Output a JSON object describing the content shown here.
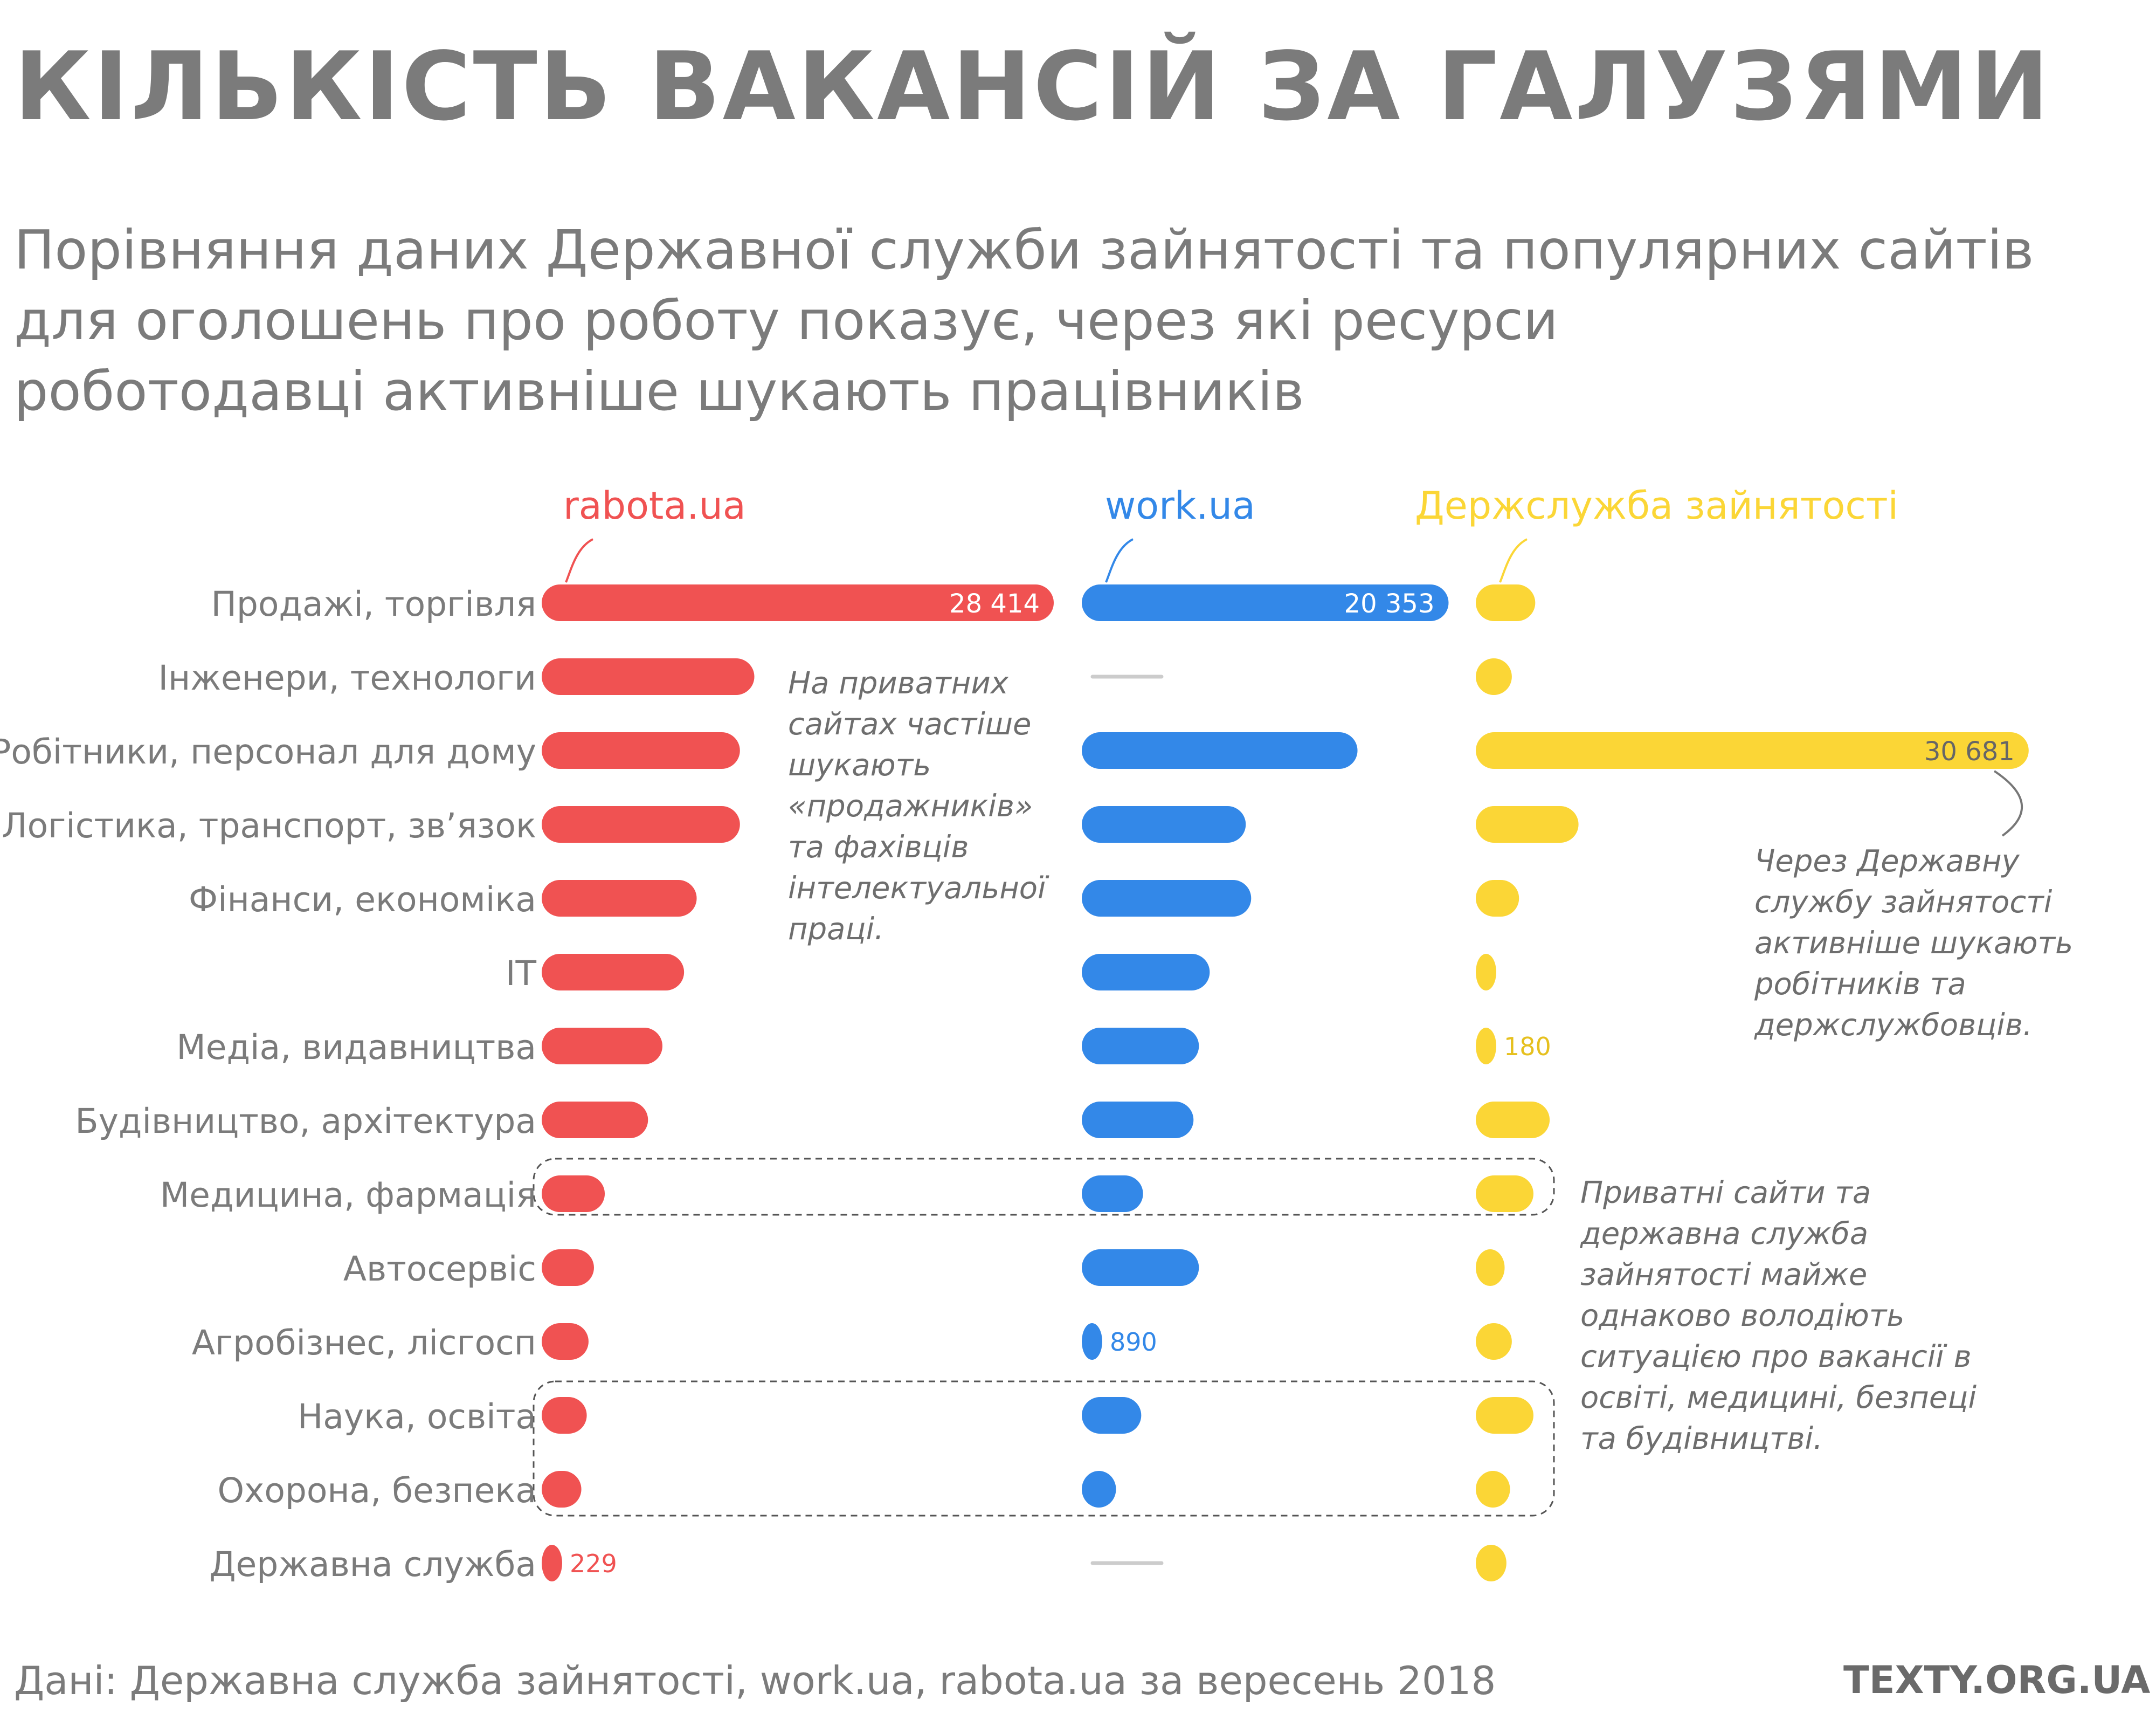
{
  "title": "КІЛЬКІСТЬ ВАКАНСІЙ ЗА ГАЛУЗЯМИ",
  "subtitle_lines": [
    "Порівняння даних Державної служби зайнятості та популярних сайтів",
    "для оголошень про роботу показує, через які ресурси",
    "роботодавці активніше шукають працівників"
  ],
  "colors": {
    "rabota": "#f05252",
    "work": "#3388e8",
    "dsz": "#fbd636",
    "text_gray": "#7b7b7b",
    "none_dash": "#cccccc"
  },
  "chart_data": {
    "type": "bar",
    "orientation": "horizontal",
    "layout": "three side-by-side panels sharing category rows",
    "categories": [
      "Продажі, торгівля",
      "Інженери, технологи",
      "Робітники, персонал для дому",
      "Логістика, транспорт, зв’язок",
      "Фінанси, економіка",
      "IT",
      "Медіа, видавництва",
      "Будівництво, архітектура",
      "Медицина, фармація",
      "Автосервіс",
      "Агробізнес, лісгосп",
      "Наука, освіта",
      "Охорона, безпека",
      "Державна служба"
    ],
    "series": [
      {
        "name": "rabota.ua",
        "color": "#f05252",
        "values": [
          28414,
          11800,
          11000,
          11000,
          8600,
          7900,
          6700,
          5900,
          3500,
          2900,
          2600,
          2500,
          2200,
          229
        ],
        "value_labels": [
          "28 414",
          "",
          "",
          "",
          "",
          "",
          "",
          "",
          "",
          "",
          "",
          "",
          "",
          "229"
        ]
      },
      {
        "name": "work.ua",
        "color": "#3388e8",
        "values": [
          20353,
          null,
          15300,
          9100,
          9400,
          7100,
          6500,
          6200,
          3400,
          6500,
          890,
          3300,
          1900,
          null
        ],
        "value_labels": [
          "20 353",
          "",
          "",
          "",
          "",
          "",
          "",
          "",
          "",
          "",
          "890",
          "",
          "",
          ""
        ]
      },
      {
        "name": "Держслужба зайнятості",
        "color": "#fbd636",
        "values": [
          3300,
          2000,
          30681,
          5700,
          2400,
          650,
          180,
          4100,
          3200,
          1600,
          2000,
          3200,
          1900,
          1700
        ],
        "value_labels": [
          "",
          "",
          "30 681",
          "",
          "",
          "",
          "180",
          "",
          "",
          "",
          "",
          "",
          "",
          ""
        ]
      }
    ],
    "annotations": [
      {
        "lines": [
          "На приватних",
          "сайтах частіше",
          "шукають",
          "«продажників»",
          "та фахівців",
          "інтелектуальної",
          "праці."
        ]
      },
      {
        "lines": [
          "Через Державну",
          "службу зайнятості",
          "активніше шукають",
          "робітників та",
          "держслужбовців."
        ]
      },
      {
        "lines": [
          "Приватні сайти та",
          "державна служба",
          "зайнятості майже",
          "однаково володіють",
          "ситуацією про вакансії в",
          "освіті, медицині, безпеці",
          "та будівництві."
        ]
      }
    ],
    "grid": false,
    "legend": "top, above each panel"
  },
  "source": "Дані: Державна служба зайнятості, work.ua, rabota.ua за вересень 2018",
  "brand": "TEXTY.ORG.UA"
}
